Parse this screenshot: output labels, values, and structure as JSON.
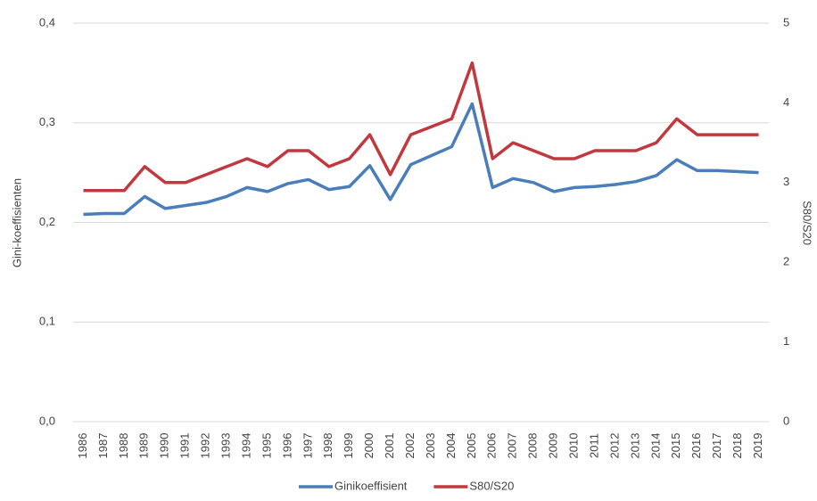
{
  "chart_data": {
    "type": "line",
    "categories": [
      "1986",
      "1987",
      "1988",
      "1989",
      "1990",
      "1991",
      "1992",
      "1993",
      "1994",
      "1995",
      "1996",
      "1997",
      "1998",
      "1999",
      "2000",
      "2001",
      "2002",
      "2003",
      "2004",
      "2005",
      "2006",
      "2007",
      "2008",
      "2009",
      "2010",
      "2011",
      "2012",
      "2013",
      "2014",
      "2015",
      "2016",
      "2017",
      "2018",
      "2019"
    ],
    "series": [
      {
        "name": "Ginikoeffisient",
        "color": "#4a7ebb",
        "values": [
          0.208,
          0.209,
          0.209,
          0.226,
          0.214,
          0.217,
          0.22,
          0.226,
          0.235,
          0.231,
          0.239,
          0.243,
          0.233,
          0.236,
          0.257,
          0.223,
          0.258,
          0.267,
          0.276,
          0.319,
          0.235,
          0.244,
          0.24,
          0.231,
          0.235,
          0.236,
          0.238,
          0.241,
          0.247,
          0.263,
          0.252,
          0.252,
          0.251,
          0.25
        ]
      },
      {
        "name": "S80/S20",
        "color": "#c0393f",
        "axis": "y2",
        "values": [
          2.9,
          2.9,
          2.9,
          3.2,
          3.0,
          3.0,
          3.1,
          3.2,
          3.3,
          3.2,
          3.4,
          3.4,
          3.2,
          3.3,
          3.6,
          3.1,
          3.6,
          3.7,
          3.8,
          4.5,
          3.3,
          3.5,
          3.4,
          3.3,
          3.3,
          3.4,
          3.4,
          3.4,
          3.5,
          3.8,
          3.6,
          3.6,
          3.6,
          3.6
        ]
      }
    ],
    "y_label": "Gini-koeffisienten",
    "y2_label": "S80/S20",
    "ylim": [
      0,
      0.4
    ],
    "yticks": [
      {
        "value": 0,
        "label": "0,0"
      },
      {
        "value": 0.1,
        "label": "0,1"
      },
      {
        "value": 0.2,
        "label": "0,2"
      },
      {
        "value": 0.3,
        "label": "0,3"
      },
      {
        "value": 0.4,
        "label": "0,4"
      }
    ],
    "y2lim": [
      0,
      5
    ],
    "y2ticks": [
      0,
      1,
      2,
      3,
      4,
      5
    ],
    "grid": true,
    "legend": "bottom"
  }
}
